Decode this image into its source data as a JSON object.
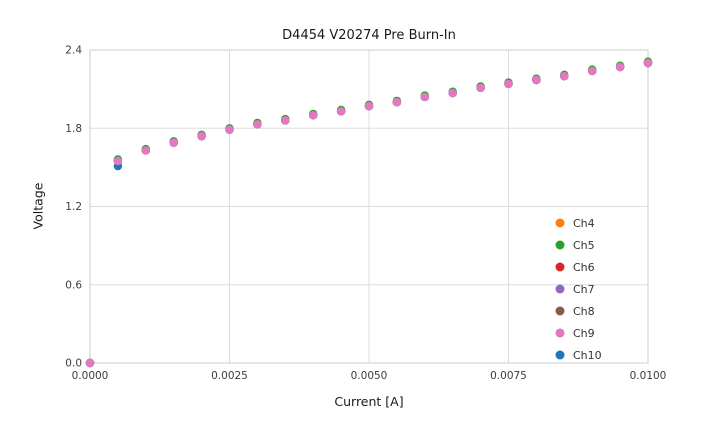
{
  "chart_data": {
    "type": "scatter",
    "title": "D4454 V20274 Pre Burn-In",
    "xlabel": "Current [A]",
    "ylabel": "Voltage",
    "xlim": [
      0.0,
      0.01
    ],
    "ylim": [
      0.0,
      2.4
    ],
    "grid": true,
    "legend_position": "lower right",
    "xticks": [
      {
        "value": 0.0,
        "label": "0.0000"
      },
      {
        "value": 0.0025,
        "label": "0.0025"
      },
      {
        "value": 0.005,
        "label": "0.0050"
      },
      {
        "value": 0.0075,
        "label": "0.0075"
      },
      {
        "value": 0.01,
        "label": "0.0100"
      }
    ],
    "yticks": [
      {
        "value": 0.0,
        "label": "0.0"
      },
      {
        "value": 0.6,
        "label": "0.6"
      },
      {
        "value": 1.2,
        "label": "1.2"
      },
      {
        "value": 1.8,
        "label": "1.8"
      },
      {
        "value": 2.4,
        "label": "2.4"
      }
    ],
    "x": [
      0.0,
      0.0005,
      0.001,
      0.0015,
      0.002,
      0.0025,
      0.003,
      0.0035,
      0.004,
      0.0045,
      0.005,
      0.0055,
      0.006,
      0.0065,
      0.007,
      0.0075,
      0.008,
      0.0085,
      0.009,
      0.0095,
      0.01
    ],
    "series": [
      {
        "name": "Ch4",
        "color": "#ff7f0e",
        "values": [
          0.0,
          1.55,
          1.63,
          1.69,
          1.74,
          1.79,
          1.83,
          1.86,
          1.9,
          1.93,
          1.97,
          2.0,
          2.04,
          2.07,
          2.11,
          2.14,
          2.17,
          2.2,
          2.24,
          2.27,
          2.3
        ]
      },
      {
        "name": "Ch5",
        "color": "#2ca02c",
        "values": [
          0.0,
          1.56,
          1.64,
          1.7,
          1.75,
          1.8,
          1.84,
          1.87,
          1.91,
          1.94,
          1.98,
          2.01,
          2.05,
          2.08,
          2.12,
          2.15,
          2.18,
          2.21,
          2.25,
          2.28,
          2.31
        ]
      },
      {
        "name": "Ch6",
        "color": "#d62728",
        "values": [
          0.0,
          1.55,
          1.63,
          1.69,
          1.74,
          1.79,
          1.83,
          1.86,
          1.9,
          1.93,
          1.97,
          2.0,
          2.04,
          2.07,
          2.11,
          2.14,
          2.17,
          2.2,
          2.24,
          2.27,
          2.3
        ]
      },
      {
        "name": "Ch7",
        "color": "#9467bd",
        "values": [
          0.0,
          1.55,
          1.63,
          1.69,
          1.74,
          1.79,
          1.83,
          1.86,
          1.9,
          1.93,
          1.97,
          2.0,
          2.04,
          2.07,
          2.11,
          2.14,
          2.17,
          2.2,
          2.24,
          2.27,
          2.3
        ]
      },
      {
        "name": "Ch8",
        "color": "#8c564b",
        "values": [
          0.0,
          1.55,
          1.63,
          1.69,
          1.74,
          1.79,
          1.83,
          1.86,
          1.9,
          1.93,
          1.97,
          2.0,
          2.04,
          2.07,
          2.11,
          2.14,
          2.17,
          2.2,
          2.24,
          2.27,
          2.3
        ]
      },
      {
        "name": "Ch9",
        "color": "#e377c2",
        "values": [
          0.0,
          1.55,
          1.63,
          1.69,
          1.74,
          1.79,
          1.83,
          1.86,
          1.9,
          1.93,
          1.97,
          2.0,
          2.04,
          2.07,
          2.11,
          2.14,
          2.17,
          2.2,
          2.24,
          2.27,
          2.3
        ]
      },
      {
        "name": "Ch10",
        "color": "#1f77b4",
        "values": [
          0.0,
          1.51,
          1.63,
          1.69,
          1.74,
          1.79,
          1.83,
          1.86,
          1.9,
          1.93,
          1.97,
          2.0,
          2.04,
          2.07,
          2.11,
          2.14,
          2.17,
          2.2,
          2.24,
          2.27,
          2.3
        ]
      }
    ]
  }
}
